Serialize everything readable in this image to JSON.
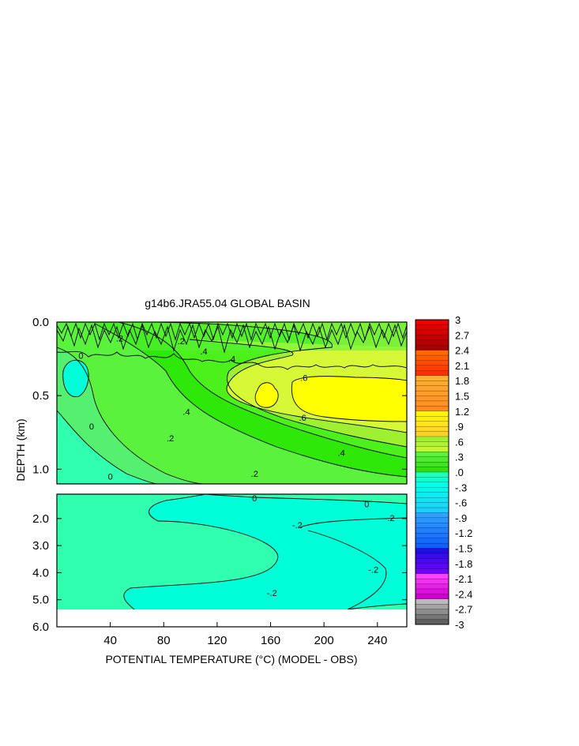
{
  "chart_data": {
    "type": "heatmap",
    "title": "g14b6.JRA55.04 GLOBAL BASIN",
    "xlabel": "POTENTIAL TEMPERATURE (°C) (MODEL - OBS)",
    "ylabel": "DEPTH (km)",
    "xlim": [
      0,
      262
    ],
    "x_ticks": [
      40,
      80,
      120,
      160,
      200,
      240
    ],
    "x_tick_labels": [
      "40",
      "80",
      "120",
      "160",
      "200",
      "240"
    ],
    "panels": [
      {
        "name": "upper",
        "ylim": [
          0.0,
          1.1
        ],
        "y_ticks": [
          0.0,
          0.5,
          1.0
        ],
        "y_tick_labels": [
          "0.0",
          "0.5",
          "1.0"
        ]
      },
      {
        "name": "lower",
        "ylim": [
          1.1,
          6.0
        ],
        "y_ticks": [
          2.0,
          3.0,
          4.0,
          5.0,
          6.0
        ],
        "y_tick_labels": [
          "2.0",
          "3.0",
          "4.0",
          "5.0",
          "6.0"
        ]
      }
    ],
    "contour_labels": [
      {
        "panel": 0,
        "x": 18,
        "y": 0.24,
        "text": "0"
      },
      {
        "panel": 0,
        "x": 47,
        "y": 0.12,
        "text": ".2"
      },
      {
        "panel": 0,
        "x": 93,
        "y": 0.14,
        "text": ".2"
      },
      {
        "panel": 0,
        "x": 110,
        "y": 0.21,
        "text": ".4"
      },
      {
        "panel": 0,
        "x": 131,
        "y": 0.26,
        "text": ".4"
      },
      {
        "panel": 0,
        "x": 185,
        "y": 0.39,
        "text": ".6"
      },
      {
        "panel": 0,
        "x": 184,
        "y": 0.66,
        "text": ".6"
      },
      {
        "panel": 0,
        "x": 97,
        "y": 0.62,
        "text": ".4"
      },
      {
        "panel": 0,
        "x": 85,
        "y": 0.8,
        "text": ".2"
      },
      {
        "panel": 0,
        "x": 26,
        "y": 0.72,
        "text": "0"
      },
      {
        "panel": 0,
        "x": 40,
        "y": 1.06,
        "text": "0"
      },
      {
        "panel": 0,
        "x": 148,
        "y": 1.04,
        "text": ".2"
      },
      {
        "panel": 0,
        "x": 213,
        "y": 0.9,
        "text": ".4"
      },
      {
        "panel": 1,
        "x": 148,
        "y": 1.3,
        "text": "0"
      },
      {
        "panel": 1,
        "x": 232,
        "y": 1.53,
        "text": "0"
      },
      {
        "panel": 1,
        "x": 249,
        "y": 2.03,
        "text": "-.2"
      },
      {
        "panel": 1,
        "x": 180,
        "y": 2.3,
        "text": "-.2"
      },
      {
        "panel": 1,
        "x": 237,
        "y": 3.95,
        "text": "-.2"
      },
      {
        "panel": 1,
        "x": 161,
        "y": 4.8,
        "text": "-.2"
      }
    ],
    "colorbar": {
      "min": -3,
      "max": 3,
      "interval": 0.1,
      "labels": [
        "3",
        "2.7",
        "2.4",
        "2.1",
        "1.8",
        "1.5",
        "1.2",
        ".9",
        ".6",
        ".3",
        ".0",
        "-.3",
        "-.6",
        "-.9",
        "-1.2",
        "-1.5",
        "-1.8",
        "-2.1",
        "-2.4",
        "-2.7",
        "-3"
      ],
      "fill_colors": {
        "-0.2_to_-0.1": "#00ffd8",
        "-0.1_to_0": "#30ffb0",
        "0_to_0.1": "#56f070",
        "0.1_to_0.2": "#5af23c",
        "0.2_to_0.3": "#2ee80a",
        "0.3_to_0.4": "#4cf01a",
        "0.4_to_0.5": "#9ef030",
        "0.5_to_0.6": "#d6f836",
        "0.6_to_0.7": "#ffff00"
      }
    }
  }
}
